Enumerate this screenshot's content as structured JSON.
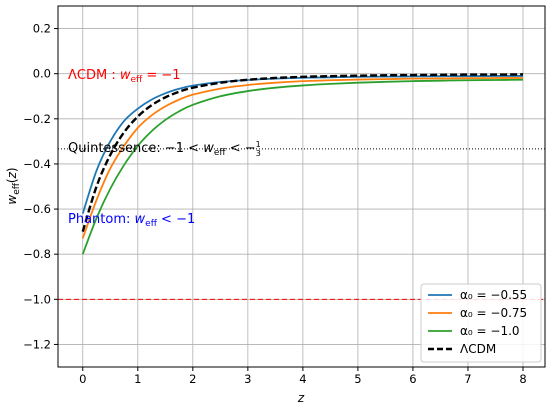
{
  "chart_data": {
    "type": "line",
    "xlabel": "z",
    "ylabel": "w_eff(z)",
    "xlim": [
      -0.45,
      8.4
    ],
    "ylim": [
      -1.3,
      0.3
    ],
    "xticks": [
      0,
      1,
      2,
      3,
      4,
      5,
      6,
      7,
      8
    ],
    "yticks": [
      0.2,
      0.0,
      -0.2,
      -0.4,
      -0.6,
      -0.8,
      -1.0,
      -1.2
    ],
    "xtick_labels": [
      "0",
      "1",
      "2",
      "3",
      "4",
      "5",
      "6",
      "7",
      "8"
    ],
    "ytick_labels": [
      "0.2",
      "0.0",
      "−0.2",
      "−0.4",
      "−0.6",
      "−0.8",
      "−1.0",
      "−1.2"
    ],
    "grid": true,
    "legend_position": "lower-right",
    "x": [
      0,
      0.25,
      0.5,
      0.75,
      1,
      1.25,
      1.5,
      1.75,
      2,
      2.5,
      3,
      3.5,
      4,
      4.5,
      5,
      5.5,
      6,
      6.5,
      7,
      7.5,
      8
    ],
    "series": [
      {
        "name": "α₀ = −0.55",
        "color": "#1f77b4",
        "style": "solid",
        "values": [
          -0.62,
          -0.43,
          -0.3,
          -0.21,
          -0.155,
          -0.115,
          -0.087,
          -0.067,
          -0.053,
          -0.037,
          -0.028,
          -0.022,
          -0.018,
          -0.016,
          -0.014,
          -0.013,
          -0.012,
          -0.011,
          -0.011,
          -0.01,
          -0.01
        ]
      },
      {
        "name": "α₀ = −0.75",
        "color": "#ff7f0e",
        "style": "solid",
        "values": [
          -0.73,
          -0.56,
          -0.42,
          -0.32,
          -0.24,
          -0.185,
          -0.145,
          -0.115,
          -0.093,
          -0.066,
          -0.05,
          -0.04,
          -0.033,
          -0.029,
          -0.026,
          -0.024,
          -0.022,
          -0.021,
          -0.02,
          -0.019,
          -0.019
        ]
      },
      {
        "name": "α₀ = −1.0",
        "color": "#2ca02c",
        "style": "solid",
        "values": [
          -0.8,
          -0.64,
          -0.51,
          -0.405,
          -0.32,
          -0.255,
          -0.205,
          -0.167,
          -0.138,
          -0.1,
          -0.077,
          -0.062,
          -0.052,
          -0.045,
          -0.04,
          -0.036,
          -0.033,
          -0.031,
          -0.029,
          -0.028,
          -0.027
        ]
      },
      {
        "name": "ΛCDM",
        "color": "#000000",
        "style": "dashed",
        "values": [
          -0.7,
          -0.5,
          -0.36,
          -0.26,
          -0.19,
          -0.14,
          -0.105,
          -0.08,
          -0.062,
          -0.04,
          -0.027,
          -0.019,
          -0.014,
          -0.011,
          -0.009,
          -0.007,
          -0.006,
          -0.005,
          -0.004,
          -0.004,
          -0.003
        ]
      }
    ],
    "reference_lines": [
      {
        "y": -1.0,
        "color": "#ff0000",
        "style": "dashed"
      },
      {
        "y": -0.3333,
        "color": "#000000",
        "style": "dotted"
      }
    ],
    "annotations": [
      {
        "text_main": "ΛCDM : ",
        "text_math": "w_eff = −1",
        "color": "#ff0000",
        "x": -0.25,
        "y": 0.0
      },
      {
        "text_main": "Quintessence: ",
        "text_math": "−1 < w_eff < −1/3",
        "color": "#000000",
        "x": -0.25,
        "y": -0.3333
      },
      {
        "text_main": "Phantom: ",
        "text_math": "w_eff < −1",
        "color": "#0000ff",
        "x": -0.25,
        "y": -0.65
      }
    ]
  }
}
